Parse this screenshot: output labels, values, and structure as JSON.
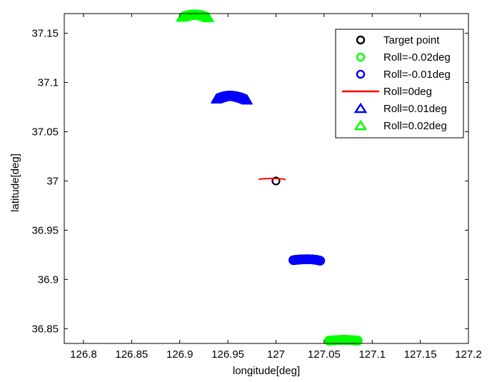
{
  "chart_data": {
    "type": "scatter",
    "title": "",
    "xlabel": "longitude[deg]",
    "ylabel": "latitude[deg]",
    "xlim": [
      126.78,
      127.2
    ],
    "ylim": [
      36.835,
      37.17
    ],
    "x_ticks": [
      126.8,
      126.85,
      126.9,
      126.95,
      127,
      127.05,
      127.1,
      127.15,
      127.2
    ],
    "x_tick_labels": [
      "126.8",
      "126.85",
      "126.9",
      "126.95",
      "127",
      "127.05",
      "127.1",
      "127.15",
      "127.2"
    ],
    "y_ticks": [
      36.85,
      36.9,
      36.95,
      37,
      37.05,
      37.1,
      37.15
    ],
    "y_tick_labels": [
      "36.85",
      "36.9",
      "36.95",
      "37",
      "37.05",
      "37.1",
      "37.15"
    ],
    "grid": false,
    "legend_position": "top-right",
    "series": [
      {
        "name": "Target point",
        "marker": "circle",
        "style": "marker",
        "color": "#000000",
        "points": [
          [
            127.0,
            37.0
          ]
        ]
      },
      {
        "name": "Roll=-0.02deg",
        "marker": "circle",
        "style": "marker",
        "color": "#00ff00",
        "points": [
          [
            127.055,
            36.8378
          ],
          [
            127.06,
            36.8382
          ],
          [
            127.065,
            36.8385
          ],
          [
            127.07,
            36.8387
          ],
          [
            127.075,
            36.8386
          ],
          [
            127.08,
            36.8383
          ],
          [
            127.085,
            36.8378
          ]
        ]
      },
      {
        "name": "Roll=-0.01deg",
        "marker": "circle",
        "style": "marker",
        "color": "#0000ff",
        "points": [
          [
            127.018,
            36.9196
          ],
          [
            127.022,
            36.92
          ],
          [
            127.026,
            36.9203
          ],
          [
            127.03,
            36.9205
          ],
          [
            127.034,
            36.9205
          ],
          [
            127.038,
            36.9203
          ],
          [
            127.042,
            36.9199
          ],
          [
            127.046,
            36.919
          ]
        ]
      },
      {
        "name": "Roll=0deg",
        "marker": "none",
        "style": "line",
        "color": "#ff0000",
        "points": [
          [
            126.982,
            37.0018
          ],
          [
            126.987,
            37.0022
          ],
          [
            126.992,
            37.0024
          ],
          [
            126.997,
            37.0025
          ],
          [
            127.002,
            37.0024
          ],
          [
            127.007,
            37.002
          ],
          [
            127.01,
            37.0014
          ]
        ]
      },
      {
        "name": "Roll=0.01deg",
        "marker": "triangle",
        "style": "marker",
        "color": "#0000ff",
        "points": [
          [
            126.938,
            37.083
          ],
          [
            126.942,
            37.0845
          ],
          [
            126.946,
            37.0855
          ],
          [
            126.95,
            37.086
          ],
          [
            126.954,
            37.086
          ],
          [
            126.958,
            37.0856
          ],
          [
            126.962,
            37.0848
          ],
          [
            126.966,
            37.0836
          ],
          [
            126.97,
            37.082
          ]
        ]
      },
      {
        "name": "Roll=0.02deg",
        "marker": "triangle",
        "style": "marker",
        "color": "#00ff00",
        "points": [
          [
            126.902,
            37.166
          ],
          [
            126.906,
            37.1672
          ],
          [
            126.91,
            37.168
          ],
          [
            126.914,
            37.1684
          ],
          [
            126.918,
            37.1684
          ],
          [
            126.922,
            37.168
          ],
          [
            126.926,
            37.167
          ],
          [
            126.93,
            37.1655
          ]
        ]
      }
    ]
  }
}
